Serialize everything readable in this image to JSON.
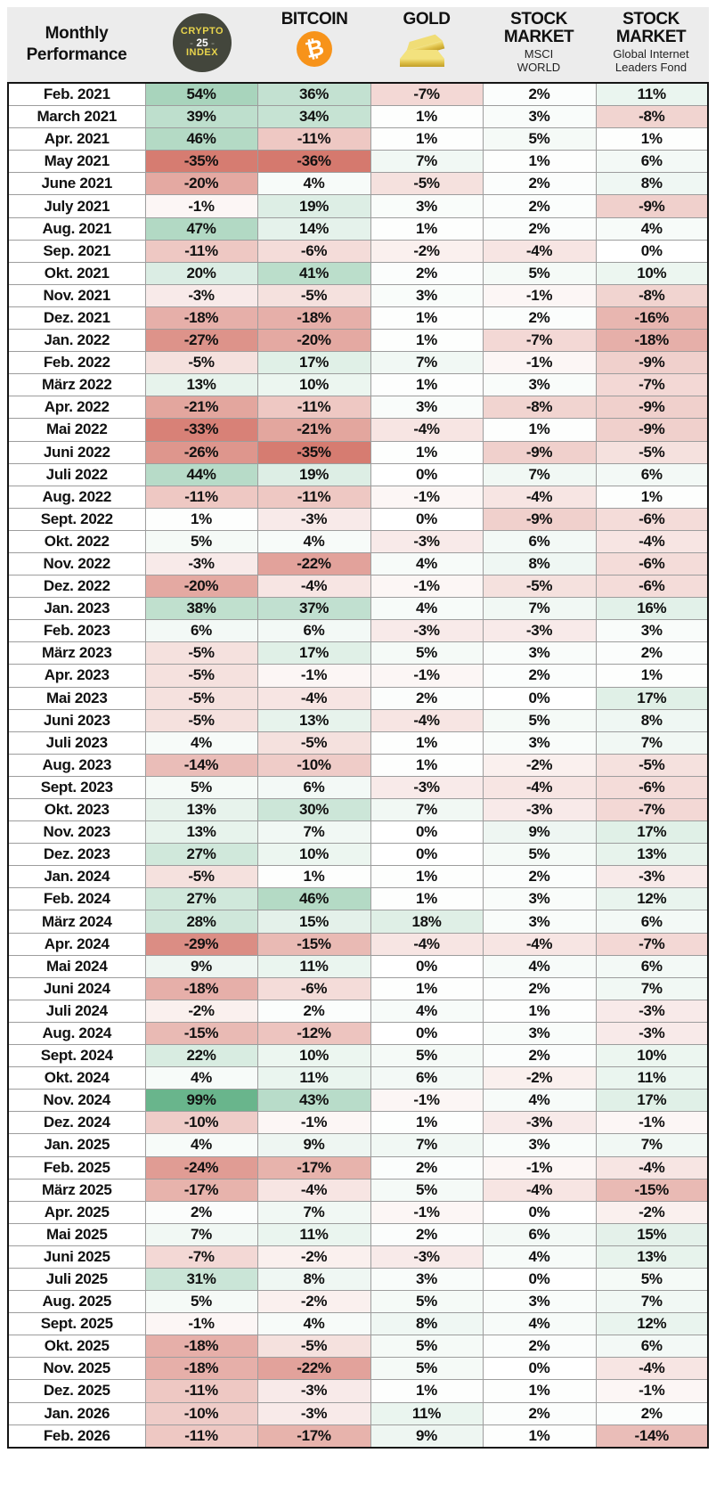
{
  "header": {
    "title": "Monthly Performance",
    "month_col_title": "Monthly\nPerformance",
    "crypto_badge": {
      "line1": "CRYPTO",
      "line2_pre": "- ",
      "line2_num": "25",
      "line2_post": " -",
      "line3": "INDEX"
    },
    "bitcoin_title": "BITCOIN",
    "bitcoin_symbol": "₿",
    "gold_title": "GOLD",
    "msci_title": "STOCK\nMARKET",
    "msci_subtitle": "MSCI\nWORLD",
    "gil_title": "STOCK\nMARKET",
    "gil_subtitle": "Global Internet\nLeaders Fond"
  },
  "colors": {
    "header_bg": "#ececec",
    "badge_bg": "#43463c",
    "badge_text": "#e8d44c",
    "bitcoin_orange": "#f7931a",
    "positive_max": "#69b58c",
    "negative_max": "#d5796e",
    "grid_line": "#9d9d9d",
    "outer_border": "#151515",
    "text": "#111111"
  },
  "scale": {
    "positive_limit": 99,
    "negative_limit": 36,
    "positive_gamma": 0.9,
    "negative_gamma": 0.75
  },
  "chart_data": {
    "type": "heatmap",
    "title": "Monthly Performance",
    "unit": "%",
    "categories": [
      "Feb. 2021",
      "March 2021",
      "Apr. 2021",
      "May 2021",
      "June 2021",
      "July 2021",
      "Aug. 2021",
      "Sep. 2021",
      "Okt. 2021",
      "Nov. 2021",
      "Dez. 2021",
      "Jan. 2022",
      "Feb. 2022",
      "März 2022",
      "Apr. 2022",
      "Mai 2022",
      "Juni 2022",
      "Juli 2022",
      "Aug. 2022",
      "Sept. 2022",
      "Okt. 2022",
      "Nov. 2022",
      "Dez. 2022",
      "Jan. 2023",
      "Feb. 2023",
      "März 2023",
      "Apr. 2023",
      "Mai 2023",
      "Juni 2023",
      "Juli 2023",
      "Aug. 2023",
      "Sept. 2023",
      "Okt. 2023",
      "Nov. 2023",
      "Dez. 2023",
      "Jan. 2024",
      "Feb. 2024",
      "März 2024",
      "Apr. 2024",
      "Mai 2024",
      "Juni 2024",
      "Juli 2024",
      "Aug. 2024",
      "Sept. 2024",
      "Okt. 2024",
      "Nov. 2024",
      "Dez. 2024",
      "Jan. 2025",
      "Feb. 2025",
      "März 2025",
      "Apr. 2025",
      "Mai 2025",
      "Juni 2025",
      "Juli 2025",
      "Aug. 2025",
      "Sept. 2025",
      "Okt. 2025",
      "Nov. 2025",
      "Dez. 2025",
      "Jan. 2026",
      "Feb. 2026"
    ],
    "series": [
      {
        "key": "crypto25",
        "name": "Crypto 25 Index",
        "values": [
          54,
          39,
          46,
          -35,
          -20,
          -1,
          47,
          -11,
          20,
          -3,
          -18,
          -27,
          -5,
          13,
          -21,
          -33,
          -26,
          44,
          -11,
          1,
          5,
          -3,
          -20,
          38,
          6,
          -5,
          -5,
          -5,
          -5,
          4,
          -14,
          5,
          13,
          13,
          27,
          -5,
          27,
          28,
          -29,
          9,
          -18,
          -2,
          -15,
          22,
          4,
          99,
          -10,
          4,
          -24,
          -17,
          2,
          7,
          -7,
          31,
          5,
          -1,
          -18,
          -18,
          -11,
          -10,
          -11
        ]
      },
      {
        "key": "bitcoin",
        "name": "Bitcoin",
        "values": [
          36,
          34,
          -11,
          -36,
          4,
          19,
          14,
          -6,
          41,
          -5,
          -18,
          -20,
          17,
          10,
          -11,
          -21,
          -35,
          19,
          -11,
          -3,
          4,
          -22,
          -4,
          37,
          6,
          17,
          -1,
          -4,
          13,
          -5,
          -10,
          6,
          30,
          7,
          10,
          1,
          46,
          15,
          -15,
          11,
          -6,
          2,
          -12,
          10,
          11,
          43,
          -1,
          9,
          -17,
          -4,
          7,
          11,
          -2,
          8,
          -2,
          4,
          -5,
          -22,
          -3,
          -3,
          -17
        ]
      },
      {
        "key": "gold",
        "name": "Gold",
        "values": [
          -7,
          1,
          1,
          7,
          -5,
          3,
          1,
          -2,
          2,
          3,
          1,
          1,
          7,
          1,
          3,
          -4,
          1,
          0,
          -1,
          0,
          -3,
          4,
          -1,
          4,
          -3,
          5,
          -1,
          2,
          -4,
          1,
          1,
          -3,
          7,
          0,
          0,
          1,
          1,
          18,
          -4,
          0,
          1,
          4,
          0,
          5,
          6,
          -1,
          1,
          7,
          2,
          5,
          -1,
          2,
          -3,
          3,
          5,
          8,
          5,
          5,
          1,
          11,
          9
        ]
      },
      {
        "key": "msci",
        "name": "Stock Market MSCI World",
        "values": [
          2,
          3,
          5,
          1,
          2,
          2,
          2,
          -4,
          5,
          -1,
          2,
          -7,
          -1,
          3,
          -8,
          1,
          -9,
          7,
          -4,
          -9,
          6,
          8,
          -5,
          7,
          -3,
          3,
          2,
          0,
          5,
          3,
          -2,
          -4,
          -3,
          9,
          5,
          2,
          3,
          3,
          -4,
          4,
          2,
          1,
          3,
          2,
          -2,
          4,
          -3,
          3,
          -1,
          -4,
          0,
          6,
          4,
          0,
          3,
          4,
          2,
          0,
          1,
          2,
          1
        ]
      },
      {
        "key": "gil",
        "name": "Stock Market Global Internet Leaders Fond",
        "values": [
          11,
          -8,
          1,
          6,
          8,
          -9,
          4,
          0,
          10,
          -8,
          -16,
          -18,
          -9,
          -7,
          -9,
          -9,
          -5,
          6,
          1,
          -6,
          -4,
          -6,
          -6,
          16,
          3,
          2,
          1,
          17,
          8,
          7,
          -5,
          -6,
          -7,
          17,
          13,
          -3,
          12,
          6,
          -7,
          6,
          7,
          -3,
          -3,
          10,
          11,
          17,
          -1,
          7,
          -4,
          -15,
          -2,
          15,
          13,
          5,
          7,
          12,
          6,
          -4,
          -1,
          2,
          -14
        ]
      }
    ]
  }
}
